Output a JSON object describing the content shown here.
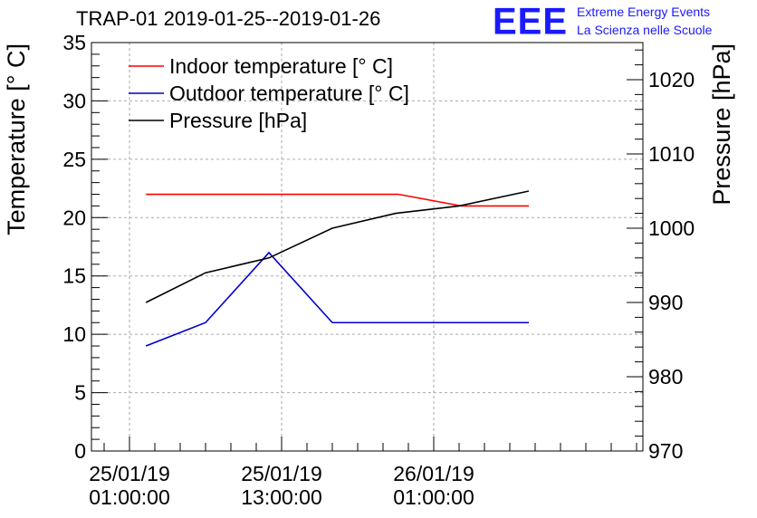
{
  "header": {
    "title": "TRAP-01 2019-01-25--2019-01-26",
    "logo": "EEE",
    "logo_line1": "Extreme Energy Events",
    "logo_line2": "La Scienza nelle Scuole"
  },
  "chart_data": {
    "type": "line",
    "title": "TRAP-01 2019-01-25--2019-01-26",
    "x_unit": "hours since 25/01/19 01:00:00",
    "xlim": [
      -3,
      40.5
    ],
    "xticks": [
      {
        "x": 0,
        "line1": "25/01/19",
        "line2": "01:00:00"
      },
      {
        "x": 12,
        "line1": "25/01/19",
        "line2": "13:00:00"
      },
      {
        "x": 24,
        "line1": "26/01/19",
        "line2": "01:00:00"
      }
    ],
    "y_left": {
      "label": "Temperature [° C]",
      "lim": [
        0,
        35
      ],
      "ticks": [
        0,
        5,
        10,
        15,
        20,
        25,
        30,
        35
      ]
    },
    "y_right": {
      "label": "Pressure [hPa]",
      "lim": [
        970,
        1025
      ],
      "ticks": [
        970,
        980,
        990,
        1000,
        1010,
        1020
      ]
    },
    "grid": true,
    "legend_position": "top-left",
    "series": [
      {
        "name": "Indoor temperature [° C]",
        "color": "#ff0000",
        "axis": "left",
        "x": [
          1.3,
          21.2,
          26.2,
          31.5
        ],
        "y": [
          22,
          22,
          21,
          21
        ]
      },
      {
        "name": "Outdoor temperature [° C]",
        "color": "#0000cc",
        "axis": "left",
        "x": [
          1.3,
          6,
          11,
          16,
          21,
          26,
          31.5
        ],
        "y": [
          9,
          11,
          17,
          11,
          11,
          11,
          11
        ]
      },
      {
        "name": "Pressure [hPa]",
        "color": "#000000",
        "axis": "right",
        "x": [
          1.3,
          6,
          11,
          16,
          21,
          26,
          31.5
        ],
        "y": [
          990,
          994,
          996,
          1000,
          1002,
          1003,
          1005
        ]
      }
    ]
  }
}
